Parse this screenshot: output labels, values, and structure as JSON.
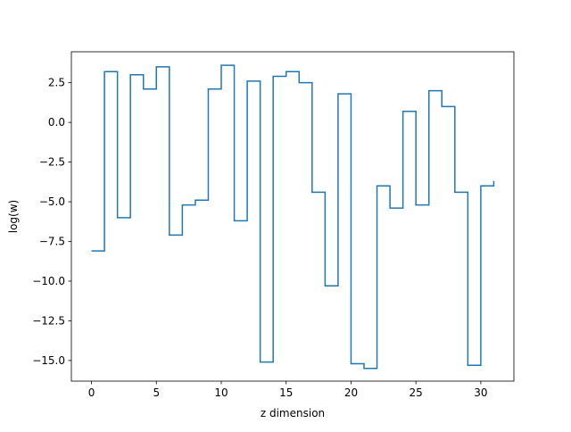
{
  "chart_data": {
    "type": "line",
    "drawstyle": "steps-post",
    "xlabel": "z dimension",
    "ylabel": "log(w)",
    "xlim": [
      -1.55,
      32.55
    ],
    "ylim": [
      -16.3,
      4.45
    ],
    "xticks": [
      0,
      5,
      10,
      15,
      20,
      25,
      30
    ],
    "yticks": [
      2.5,
      0.0,
      -2.5,
      -5.0,
      -7.5,
      -10.0,
      -12.5,
      -15.0
    ],
    "ytick_labels": [
      "2.5",
      "0.0",
      "−2.5",
      "−5.0",
      "−7.5",
      "−10.0",
      "−12.5",
      "−15.0"
    ],
    "grid": false,
    "legend": "none",
    "color": "#1f77b4",
    "series": [
      {
        "x": [
          0,
          1,
          2,
          3,
          4,
          5,
          6,
          7,
          8,
          9,
          10,
          11,
          12,
          13,
          14,
          15,
          16,
          17,
          18,
          19,
          20,
          21,
          22,
          23,
          24,
          25,
          26,
          27,
          28,
          29,
          30,
          31
        ],
        "values": [
          -8.1,
          3.2,
          -6.0,
          3.0,
          2.1,
          3.5,
          -7.1,
          -5.2,
          -4.9,
          2.1,
          3.6,
          -6.2,
          2.6,
          -15.1,
          2.9,
          3.2,
          2.5,
          -4.4,
          -10.3,
          1.8,
          -15.2,
          -15.5,
          -4.0,
          -5.4,
          0.7,
          -5.2,
          2.0,
          1.0,
          -4.4,
          -15.3,
          -4.0,
          -3.7
        ]
      }
    ]
  }
}
